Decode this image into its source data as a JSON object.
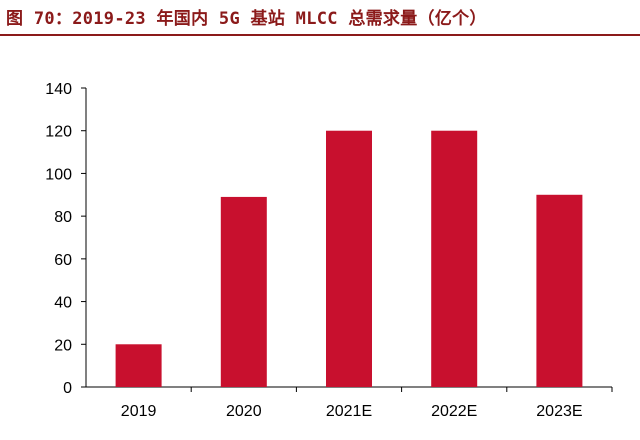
{
  "figure": {
    "title": "图 70：2019-23 年国内 5G 基站 MLCC 总需求量（亿个）"
  },
  "chart_data": {
    "type": "bar",
    "title": "图 70：2019-23 年国内 5G 基站 MLCC 总需求量（亿个）",
    "categories": [
      "2019",
      "2020",
      "2021E",
      "2022E",
      "2023E"
    ],
    "values": [
      20,
      89,
      120,
      120,
      90
    ],
    "ylim": [
      0,
      140
    ],
    "yticks": [
      0,
      20,
      40,
      60,
      80,
      100,
      120,
      140
    ],
    "bar_color": "#c8102e",
    "grid": false,
    "legend": "none"
  }
}
